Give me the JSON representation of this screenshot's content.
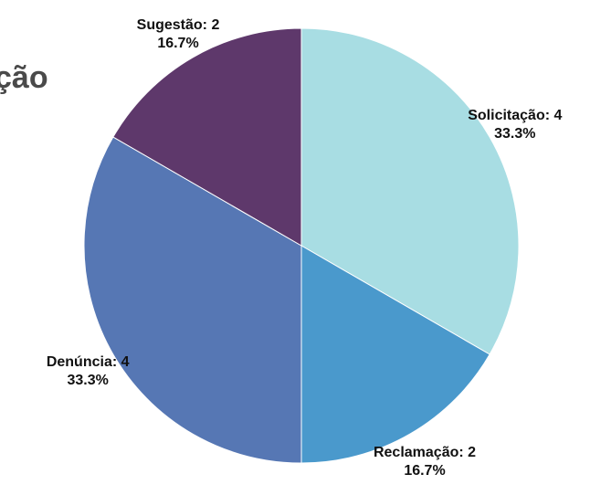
{
  "header": {
    "title_fragment": "ção"
  },
  "chart_data": {
    "type": "pie",
    "categories": [
      "Solicitação",
      "Reclamação",
      "Denúncia",
      "Sugestão"
    ],
    "values": [
      4,
      2,
      4,
      2
    ],
    "percent_labels": [
      "33.3%",
      "16.7%",
      "33.3%",
      "16.7%"
    ],
    "value_labels": [
      "Solicitação: 4",
      "Reclamação: 2",
      "Denúncia: 4",
      "Sugestão: 2"
    ],
    "colors": [
      "#a8dde3",
      "#4a99cc",
      "#5677b4",
      "#5e386b"
    ],
    "start_angle_deg": 0,
    "direction": "clockwise",
    "legend": "none"
  }
}
